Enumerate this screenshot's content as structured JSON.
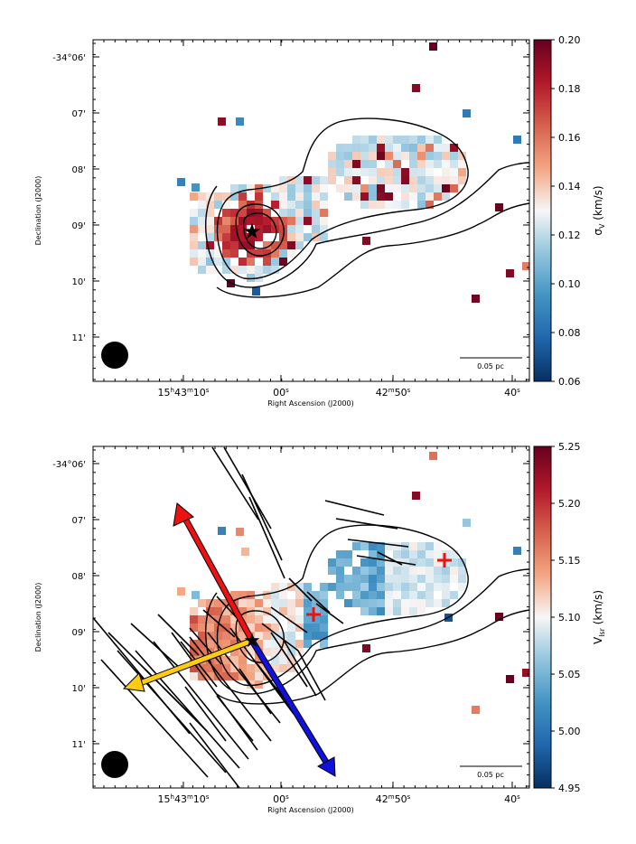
{
  "chart_data": [
    {
      "type": "heatmap",
      "x_axis": {
        "label": "Right Ascension (J2000)",
        "ticks": [
          [
            "15",
            "h",
            "43",
            "m",
            "10",
            "s"
          ],
          [
            "00",
            "s"
          ],
          [
            "42",
            "m",
            "50",
            "s"
          ],
          [
            "40",
            "s"
          ]
        ]
      },
      "y_axis": {
        "label": "Declination (J2000)",
        "ticks": [
          "-34°06'",
          "07'",
          "08'",
          "09'",
          "10'",
          "11'"
        ]
      },
      "colorbar": {
        "label_main": "σ",
        "label_sub": "V",
        "label_unit": " (km/s)",
        "range": [
          0.06,
          0.2
        ],
        "ticks": [
          "0.20",
          "0.18",
          "0.16",
          "0.14",
          "0.12",
          "0.10",
          "0.08",
          "0.06"
        ],
        "colormap": "RdBu_r"
      },
      "scalebar_label": "0.05 pc",
      "beam": "filled circle, lower-left",
      "marker": "star",
      "contours": 3
    },
    {
      "type": "heatmap",
      "x_axis": {
        "label": "Right Ascension (J2000)",
        "ticks": [
          [
            "15",
            "h",
            "43",
            "m",
            "10",
            "s"
          ],
          [
            "00",
            "s"
          ],
          [
            "42",
            "m",
            "50",
            "s"
          ],
          [
            "40",
            "s"
          ]
        ]
      },
      "y_axis": {
        "label": "Declination (J2000)",
        "ticks": [
          "-34°06'",
          "07'",
          "08'",
          "09'",
          "10'",
          "11'"
        ]
      },
      "colorbar": {
        "label_main": "V",
        "label_sub": "lsr",
        "label_unit": " (km/s)",
        "range": [
          4.95,
          5.25
        ],
        "ticks": [
          "5.25",
          "5.20",
          "5.15",
          "5.10",
          "5.05",
          "5.00",
          "4.95"
        ],
        "colormap": "RdBu_r"
      },
      "scalebar_label": "0.05 pc",
      "beam": "filled circle, lower-left",
      "marker": "star",
      "plus_markers": 2,
      "arrows": [
        {
          "color": "#ee1111",
          "direction": "upper-left"
        },
        {
          "color": "#ffcc11",
          "direction": "lower-left"
        },
        {
          "color": "#1111dd",
          "direction": "lower-right"
        }
      ],
      "polarization_segments": true,
      "contours": 3
    }
  ]
}
